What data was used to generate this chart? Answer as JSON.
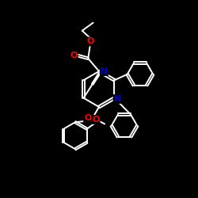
{
  "background": "#000000",
  "bond_color": "#ffffff",
  "atom_colors": {
    "O": "#ff0000",
    "N": "#0000cd",
    "C": "#ffffff"
  },
  "bond_width": 1.4,
  "dbo": 0.12,
  "figsize": [
    2.5,
    2.5
  ],
  "dpi": 100,
  "xlim": [
    0,
    10
  ],
  "ylim": [
    0,
    10
  ]
}
